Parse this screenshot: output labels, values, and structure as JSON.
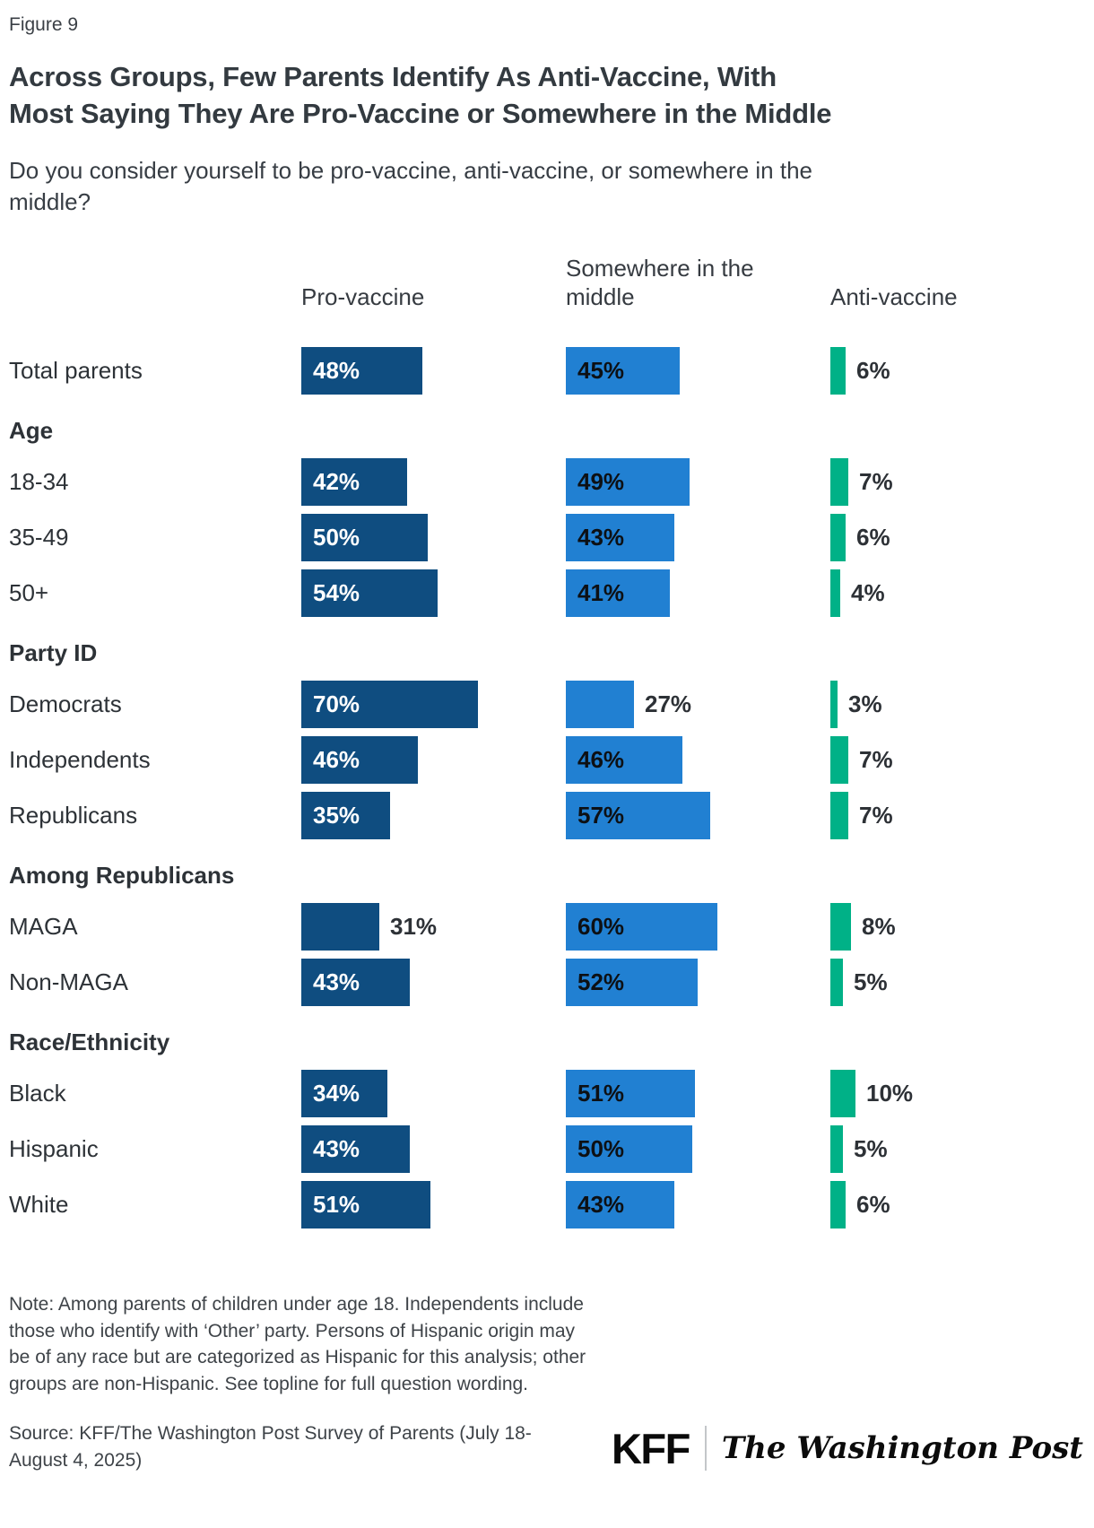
{
  "figure_label": "Figure 9",
  "title_lines": [
    "Across Groups, Few Parents Identify As Anti-Vaccine, With",
    "Most Saying They Are Pro-Vaccine or Somewhere in the Middle"
  ],
  "title_full": "Across Groups, Few Parents Identify As Anti-Vaccine, With Most Saying They Are Pro-Vaccine or Somewhere in the Middle",
  "subtitle_lines": [
    "Do you consider yourself to be pro-vaccine, anti-vaccine, or somewhere in the",
    "middle?"
  ],
  "subtitle_full": "Do you consider yourself to be pro-vaccine, anti-vaccine, or somewhere in the middle?",
  "colors": {
    "pro_vaccine": "#0f4d80",
    "middle": "#2180d2",
    "anti_vaccine": "#00b187"
  },
  "chart_data": {
    "type": "bar",
    "orientation": "horizontal",
    "unit": "%",
    "legend_position": "column headers above bars",
    "series_labels": [
      "Pro-vaccine",
      "Somewhere in the middle",
      "Anti-vaccine"
    ],
    "xlim": [
      0,
      100
    ],
    "rows": [
      {
        "kind": "data",
        "label": "Total parents",
        "values": [
          48,
          45,
          6
        ]
      },
      {
        "kind": "section",
        "label": "Age"
      },
      {
        "kind": "data",
        "label": "18-34",
        "values": [
          42,
          49,
          7
        ]
      },
      {
        "kind": "data",
        "label": "35-49",
        "values": [
          50,
          43,
          6
        ]
      },
      {
        "kind": "data",
        "label": "50+",
        "values": [
          54,
          41,
          4
        ]
      },
      {
        "kind": "section",
        "label": "Party ID"
      },
      {
        "kind": "data",
        "label": "Democrats",
        "values": [
          70,
          27,
          3
        ]
      },
      {
        "kind": "data",
        "label": "Independents",
        "values": [
          46,
          46,
          7
        ]
      },
      {
        "kind": "data",
        "label": "Republicans",
        "values": [
          35,
          57,
          7
        ]
      },
      {
        "kind": "section",
        "label": "Among Republicans"
      },
      {
        "kind": "data",
        "label": "MAGA",
        "values": [
          31,
          60,
          8
        ]
      },
      {
        "kind": "data",
        "label": "Non-MAGA",
        "values": [
          43,
          52,
          5
        ]
      },
      {
        "kind": "section",
        "label": "Race/Ethnicity"
      },
      {
        "kind": "data",
        "label": "Black",
        "values": [
          34,
          51,
          10
        ]
      },
      {
        "kind": "data",
        "label": "Hispanic",
        "values": [
          43,
          50,
          5
        ]
      },
      {
        "kind": "data",
        "label": "White",
        "values": [
          51,
          43,
          6
        ]
      }
    ]
  },
  "note": "Note: Among parents of children under age 18. Independents include those who identify with ‘Other’ party. Persons of Hispanic origin may be of any race but are categorized as Hispanic for this analysis; other groups are non-Hispanic. See topline for full question wording.",
  "source": "Source: KFF/The Washington Post Survey of Parents (July 18-August 4, 2025)",
  "logos": {
    "kff": "KFF",
    "divider": "|",
    "wapo": "The Washington Post"
  }
}
